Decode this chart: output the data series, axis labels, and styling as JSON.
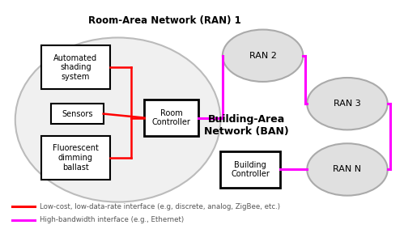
{
  "title_ran": "Room-Area Network (RAN) 1",
  "title_ban": "Building-Area\nNetwork (BAN)",
  "box_automated": "Automated\nshading\nsystem",
  "box_sensors": "Sensors",
  "box_fluorescent": "Fluorescent\ndimming\nballast",
  "box_room_controller": "Room\nController",
  "box_building_controller": "Building\nController",
  "ran2_label": "RAN 2",
  "ran3_label": "RAN 3",
  "rann_label": "RAN N",
  "legend_red": "Low-cost, low-data-rate interface (e.g, discrete, analog, ZigBee, etc.)",
  "legend_magenta": "High-bandwidth interface (e.g., Ethernet)",
  "red_color": "#ff0000",
  "magenta_color": "#ff00ff",
  "box_edge_color": "#000000",
  "box_face_color": "#ffffff",
  "ellipse_edge_color": "#aaaaaa",
  "ellipse_face_color": "#e0e0e0",
  "large_ellipse_edge": "#bbbbbb",
  "large_ellipse_face": "#f0f0f0",
  "bg_color": "#ffffff",
  "text_color": "#000000",
  "gray_text": "#555555"
}
